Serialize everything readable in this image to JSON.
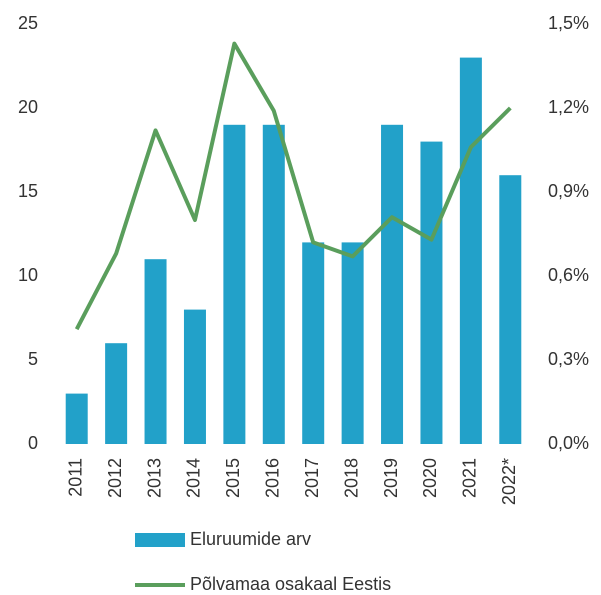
{
  "chart_data": {
    "type": "bar-line",
    "categories": [
      "2011",
      "2012",
      "2013",
      "2014",
      "2015",
      "2016",
      "2017",
      "2018",
      "2019",
      "2020",
      "2021",
      "2022*"
    ],
    "series": [
      {
        "name": "Eluruumide arv",
        "type": "bar",
        "color": "#22a1c9",
        "axis": "y",
        "values": [
          3,
          6,
          11,
          8,
          19,
          19,
          12,
          12,
          19,
          18,
          23,
          16
        ]
      },
      {
        "name": "Põlvamaa osakaal Eestis",
        "type": "line",
        "color": "#5a9e5c",
        "axis": "y2",
        "values": [
          0.41,
          0.68,
          1.12,
          0.8,
          1.43,
          1.19,
          0.72,
          0.67,
          0.81,
          0.73,
          1.06,
          1.2
        ]
      }
    ],
    "ylim": [
      0,
      25
    ],
    "yticks": [
      0,
      5,
      10,
      15,
      20,
      25
    ],
    "y2lim": [
      0,
      1.5
    ],
    "y2ticks": [
      {
        "value": 0,
        "label": "0,0%"
      },
      {
        "value": 0.3,
        "label": "0,3%"
      },
      {
        "value": 0.6,
        "label": "0,6%"
      },
      {
        "value": 0.9,
        "label": "0,9%"
      },
      {
        "value": 1.2,
        "label": "1,2%"
      },
      {
        "value": 1.5,
        "label": "1,5%"
      }
    ],
    "grid": false,
    "legend": "bottom"
  }
}
